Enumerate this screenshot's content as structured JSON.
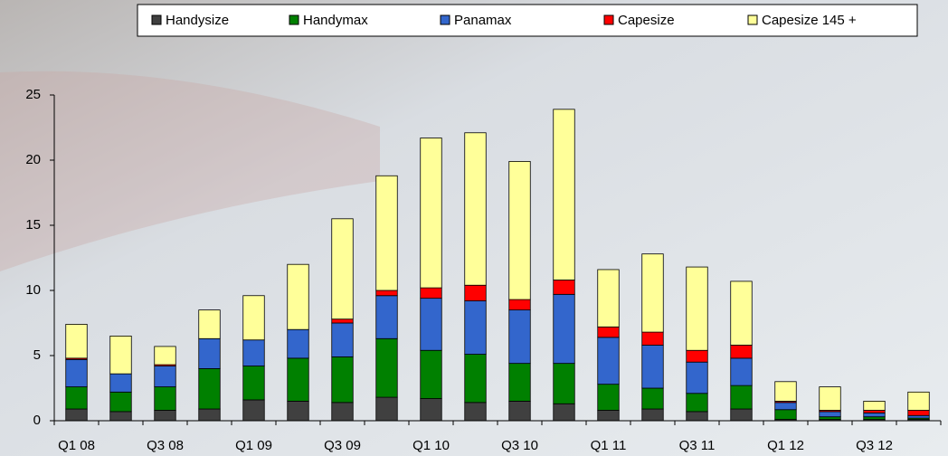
{
  "chart_data": {
    "type": "stacked_bar",
    "categories": [
      "Q1 08",
      null,
      "Q3 08",
      null,
      "Q1 09",
      null,
      "Q3 09",
      null,
      "Q1 10",
      null,
      "Q3 10",
      null,
      "Q1 11",
      null,
      "Q3 11",
      null,
      "Q1 12",
      null,
      "Q3 12",
      null
    ],
    "series": [
      {
        "name": "Handysize",
        "color": "#404040",
        "values": [
          0.9,
          0.7,
          0.8,
          0.9,
          1.6,
          1.5,
          1.4,
          1.8,
          1.7,
          1.4,
          1.5,
          1.3,
          0.8,
          0.9,
          0.7,
          0.9,
          0.1,
          0.1,
          0.1,
          0.1
        ]
      },
      {
        "name": "Handymax",
        "color": "#008000",
        "values": [
          1.7,
          1.5,
          1.8,
          3.1,
          2.6,
          3.3,
          3.5,
          4.5,
          3.7,
          3.7,
          2.9,
          3.1,
          2.0,
          1.6,
          1.4,
          1.8,
          0.75,
          0.2,
          0.2,
          0.1
        ]
      },
      {
        "name": "Panamax",
        "color": "#3366cc",
        "values": [
          2.1,
          1.4,
          1.6,
          2.3,
          2.0,
          2.2,
          2.6,
          3.3,
          4.0,
          4.1,
          4.1,
          5.3,
          3.6,
          3.3,
          2.4,
          2.1,
          0.55,
          0.4,
          0.3,
          0.2
        ]
      },
      {
        "name": "Capesize",
        "color": "#ff0000",
        "values": [
          0.1,
          0,
          0.1,
          0,
          0,
          0,
          0.3,
          0.4,
          0.8,
          1.2,
          0.8,
          1.1,
          0.8,
          1.0,
          0.9,
          1.0,
          0.1,
          0.1,
          0.2,
          0.4
        ]
      },
      {
        "name": "Capesize 145 +",
        "color": "#ffff99",
        "values": [
          2.6,
          2.9,
          1.4,
          2.2,
          3.4,
          5.0,
          7.7,
          8.8,
          11.5,
          11.7,
          10.6,
          13.1,
          4.4,
          6.0,
          6.4,
          4.9,
          1.5,
          1.8,
          0.7,
          1.4
        ]
      }
    ],
    "ylim": [
      0,
      25
    ],
    "yticks": [
      0,
      5,
      10,
      15,
      20,
      25
    ]
  }
}
